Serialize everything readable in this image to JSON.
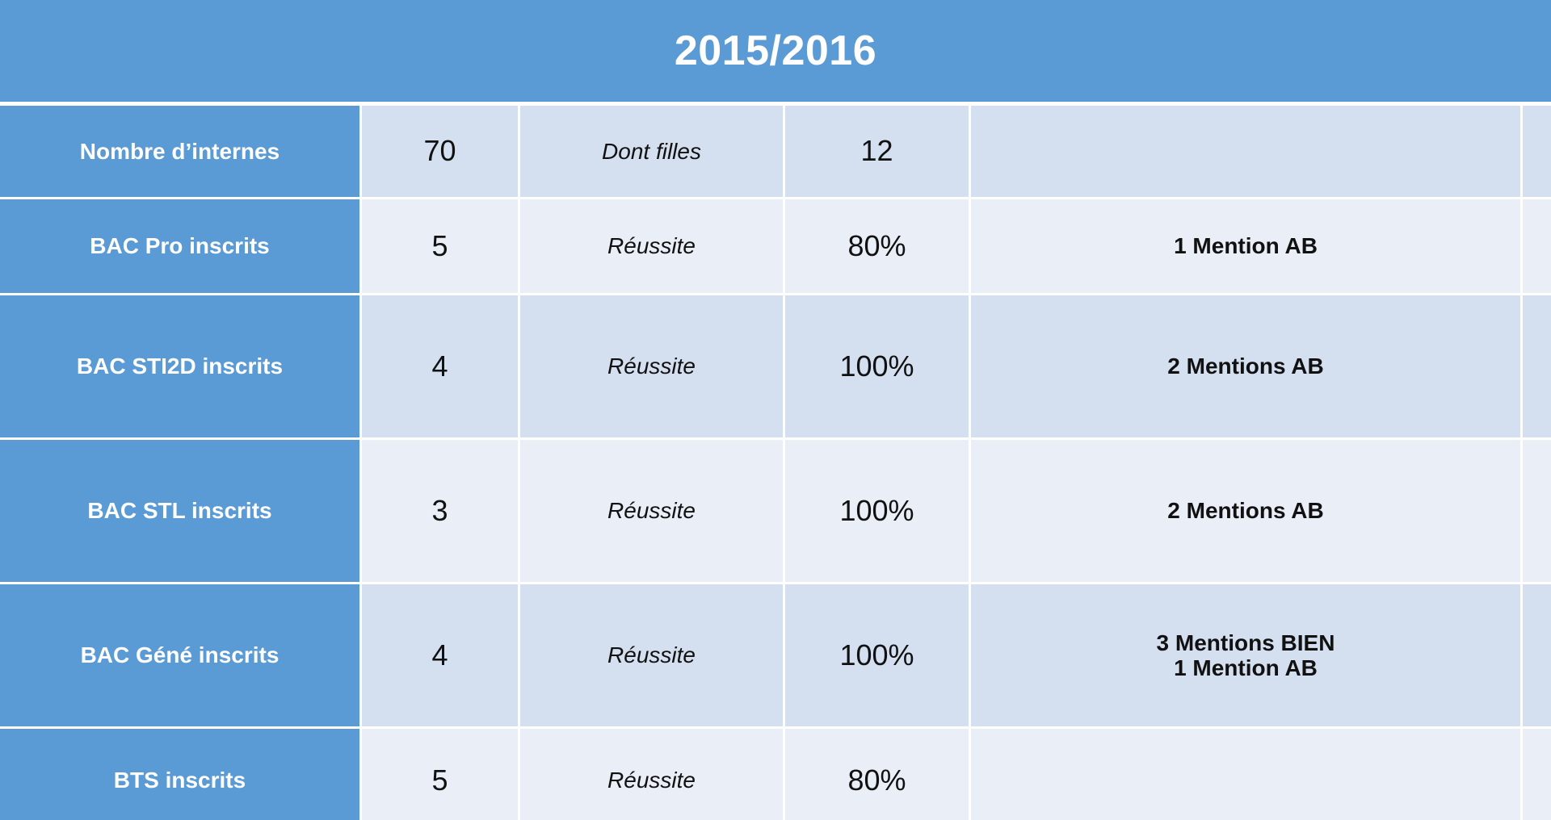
{
  "title": "2015/2016",
  "rows": [
    {
      "label": "Nombre d’internes",
      "count": "70",
      "criteria": "Dont filles",
      "value": "12",
      "mention": ""
    },
    {
      "label": "BAC Pro inscrits",
      "count": "5",
      "criteria": "Réussite",
      "value": "80%",
      "mention": "1 Mention AB"
    },
    {
      "label": "BAC STI2D inscrits",
      "count": "4",
      "criteria": "Réussite",
      "value": "100%",
      "mention": "2 Mentions AB"
    },
    {
      "label": "BAC STL inscrits",
      "count": "3",
      "criteria": "Réussite",
      "value": "100%",
      "mention": "2 Mentions AB"
    },
    {
      "label": "BAC Géné inscrits",
      "count": "4",
      "criteria": "Réussite",
      "value": "100%",
      "mention": "3 Mentions BIEN\n1 Mention AB"
    },
    {
      "label": "BTS inscrits",
      "count": "5",
      "criteria": "Réussite",
      "value": "80%",
      "mention": ""
    }
  ]
}
